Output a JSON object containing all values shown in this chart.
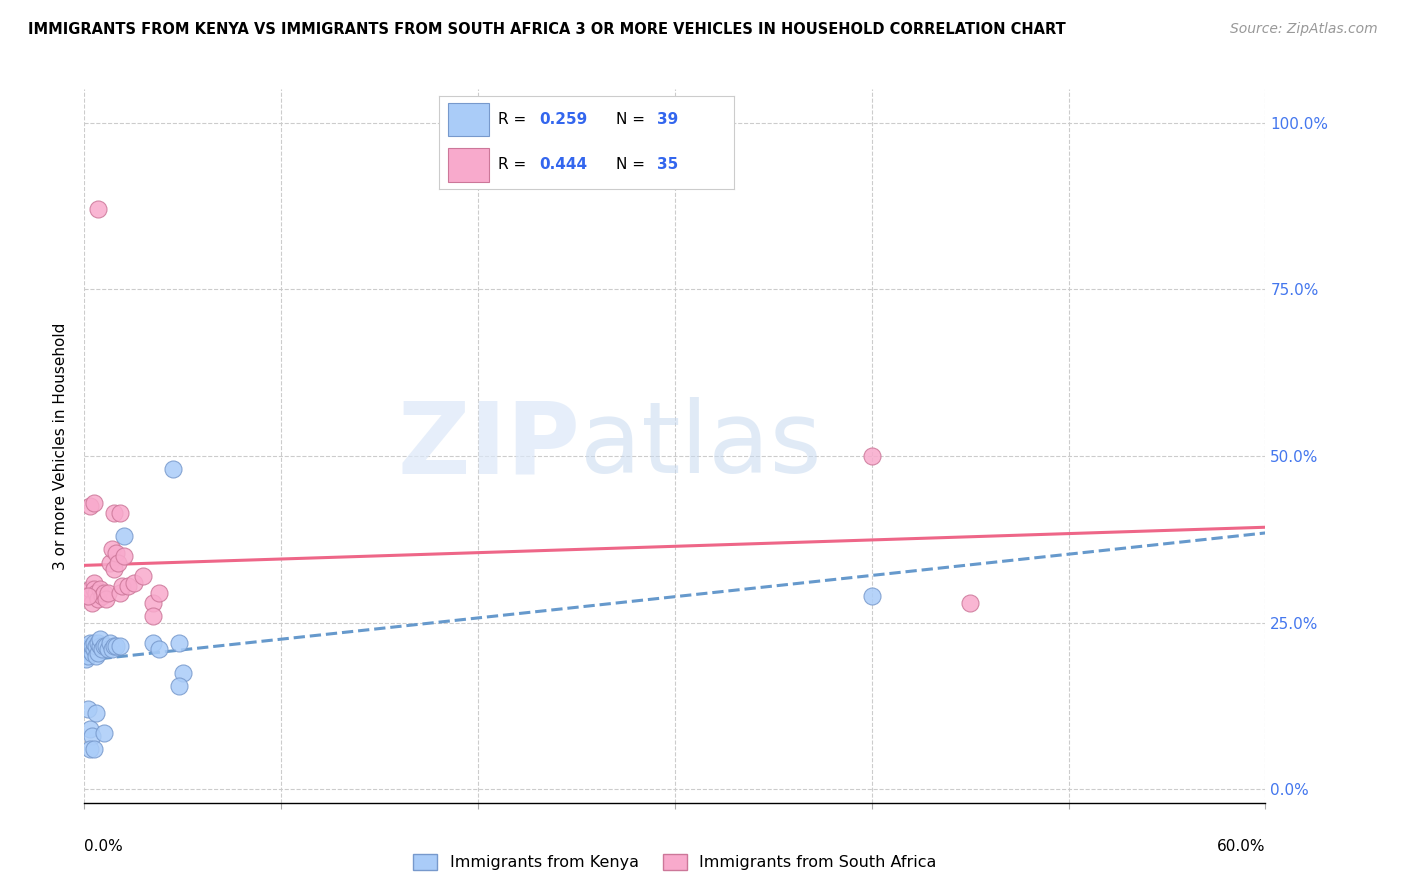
{
  "title": "IMMIGRANTS FROM KENYA VS IMMIGRANTS FROM SOUTH AFRICA 3 OR MORE VEHICLES IN HOUSEHOLD CORRELATION CHART",
  "source": "Source: ZipAtlas.com",
  "ylabel": "3 or more Vehicles in Household",
  "yticks_labels": [
    "0.0%",
    "25.0%",
    "50.0%",
    "75.0%",
    "100.0%"
  ],
  "ytick_vals": [
    0.0,
    0.25,
    0.5,
    0.75,
    1.0
  ],
  "xlim": [
    0.0,
    0.6
  ],
  "ylim": [
    -0.02,
    1.05
  ],
  "kenya_color": "#aaccf8",
  "kenya_edge_color": "#7799cc",
  "sa_color": "#f8aacc",
  "sa_edge_color": "#cc7799",
  "kenya_line_color": "#6699cc",
  "sa_line_color": "#ee6688",
  "kenya_R": 0.259,
  "kenya_N": 39,
  "sa_R": 0.444,
  "sa_N": 35,
  "kenya_scatter": [
    [
      0.001,
      0.195
    ],
    [
      0.002,
      0.2
    ],
    [
      0.002,
      0.21
    ],
    [
      0.003,
      0.215
    ],
    [
      0.003,
      0.22
    ],
    [
      0.004,
      0.205
    ],
    [
      0.004,
      0.215
    ],
    [
      0.005,
      0.21
    ],
    [
      0.005,
      0.22
    ],
    [
      0.006,
      0.2
    ],
    [
      0.006,
      0.215
    ],
    [
      0.007,
      0.205
    ],
    [
      0.007,
      0.22
    ],
    [
      0.008,
      0.215
    ],
    [
      0.008,
      0.225
    ],
    [
      0.009,
      0.21
    ],
    [
      0.01,
      0.215
    ],
    [
      0.011,
      0.215
    ],
    [
      0.012,
      0.21
    ],
    [
      0.013,
      0.22
    ],
    [
      0.014,
      0.21
    ],
    [
      0.015,
      0.215
    ],
    [
      0.016,
      0.215
    ],
    [
      0.018,
      0.215
    ],
    [
      0.02,
      0.38
    ],
    [
      0.002,
      0.12
    ],
    [
      0.003,
      0.09
    ],
    [
      0.004,
      0.08
    ],
    [
      0.006,
      0.115
    ],
    [
      0.01,
      0.085
    ],
    [
      0.035,
      0.22
    ],
    [
      0.038,
      0.21
    ],
    [
      0.045,
      0.48
    ],
    [
      0.048,
      0.22
    ],
    [
      0.05,
      0.175
    ],
    [
      0.048,
      0.155
    ],
    [
      0.4,
      0.29
    ],
    [
      0.003,
      0.06
    ],
    [
      0.005,
      0.06
    ]
  ],
  "sa_scatter": [
    [
      0.001,
      0.29
    ],
    [
      0.002,
      0.29
    ],
    [
      0.003,
      0.3
    ],
    [
      0.004,
      0.28
    ],
    [
      0.005,
      0.31
    ],
    [
      0.005,
      0.3
    ],
    [
      0.006,
      0.295
    ],
    [
      0.007,
      0.285
    ],
    [
      0.008,
      0.3
    ],
    [
      0.009,
      0.29
    ],
    [
      0.01,
      0.295
    ],
    [
      0.011,
      0.285
    ],
    [
      0.012,
      0.295
    ],
    [
      0.013,
      0.34
    ],
    [
      0.014,
      0.36
    ],
    [
      0.015,
      0.33
    ],
    [
      0.016,
      0.355
    ],
    [
      0.017,
      0.34
    ],
    [
      0.018,
      0.295
    ],
    [
      0.019,
      0.305
    ],
    [
      0.003,
      0.425
    ],
    [
      0.005,
      0.43
    ],
    [
      0.015,
      0.415
    ],
    [
      0.018,
      0.415
    ],
    [
      0.02,
      0.35
    ],
    [
      0.022,
      0.305
    ],
    [
      0.025,
      0.31
    ],
    [
      0.03,
      0.32
    ],
    [
      0.035,
      0.28
    ],
    [
      0.038,
      0.295
    ],
    [
      0.007,
      0.87
    ],
    [
      0.035,
      0.26
    ],
    [
      0.4,
      0.5
    ],
    [
      0.45,
      0.28
    ],
    [
      0.002,
      0.29
    ]
  ],
  "kenya_line_x": [
    0.0,
    0.6
  ],
  "kenya_line_y_intercept": 0.185,
  "kenya_line_slope": 0.22,
  "sa_line_x": [
    0.0,
    0.6
  ],
  "sa_line_y_intercept": 0.285,
  "sa_line_slope": 0.42
}
